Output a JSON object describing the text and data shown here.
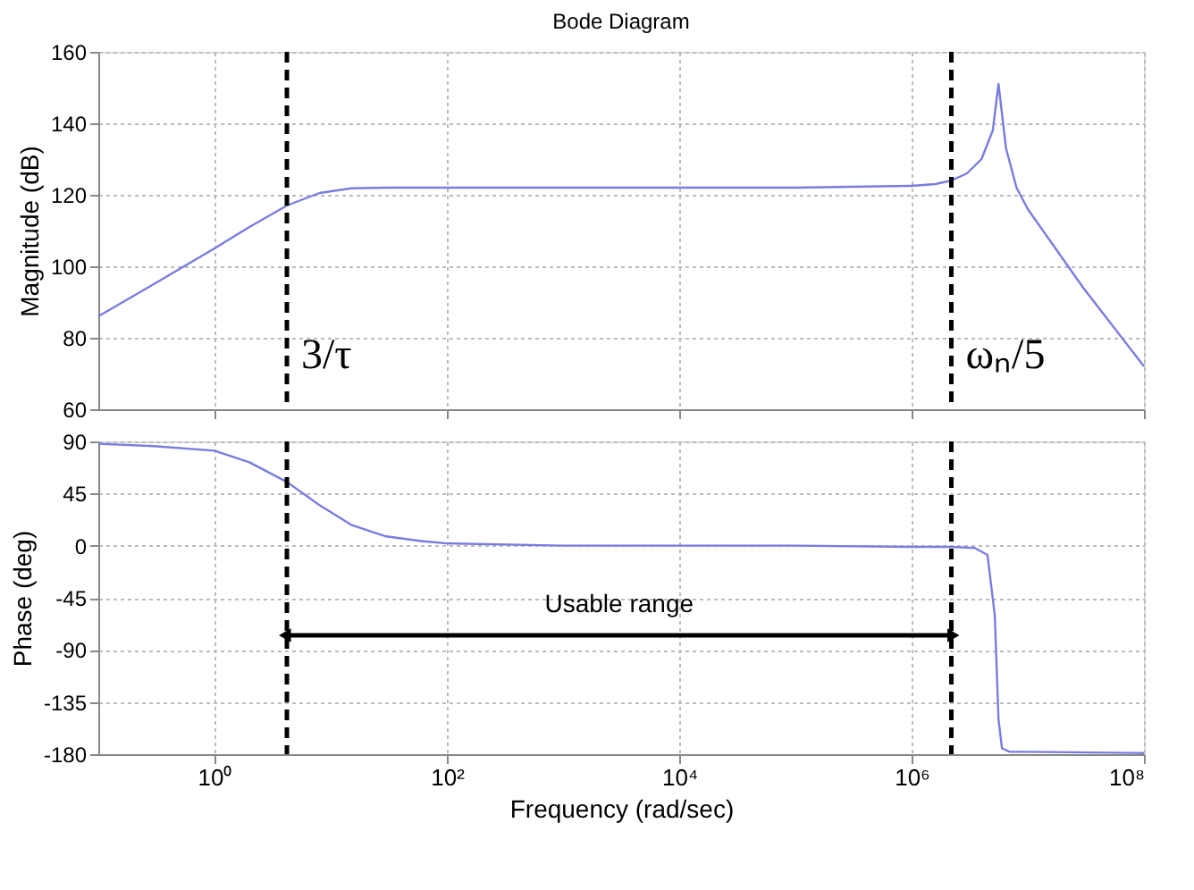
{
  "chart_data": [
    {
      "type": "line",
      "title": "Bode Diagram",
      "ylabel": "Magnitude (dB)",
      "log": "x",
      "grid": true,
      "tick_labels": "y",
      "line_style": "solid",
      "marker": "none",
      "xlim": [
        0.1,
        100000000
      ],
      "xticks": [
        {
          "value": 1,
          "label": null
        },
        {
          "value": 100,
          "label": null
        },
        {
          "value": 10000,
          "label": null
        },
        {
          "value": 1000000,
          "label": null
        },
        {
          "value": 100000000,
          "label": null
        }
      ],
      "ylim": [
        60,
        160
      ],
      "yticks": [
        60,
        80,
        100,
        120,
        140,
        160
      ],
      "x": [
        0.1,
        0.3,
        1,
        2,
        4.2,
        8,
        15,
        30,
        100,
        1000,
        100000,
        1000000,
        1600000,
        2200000,
        3000000,
        4000000,
        5000000,
        5600000,
        6500000,
        8000000,
        10000000,
        30000000,
        100000000
      ],
      "series": [
        {
          "color": "#7b7bdf",
          "values": [
            86,
            95,
            105,
            111,
            117,
            120.5,
            121.8,
            122,
            122,
            122,
            122,
            122.5,
            123,
            124,
            126,
            130,
            138,
            151,
            133,
            122,
            116,
            94,
            72
          ]
        }
      ],
      "ref_lines": [
        {
          "axis": "x",
          "value": 4.2,
          "label": "3/τ",
          "color": "#000000",
          "line_style": "dashed"
        },
        {
          "axis": "x",
          "value": 2200000,
          "label": "ωₙ/5",
          "color": "#000000",
          "line_style": "dashed"
        }
      ]
    },
    {
      "type": "line",
      "xlabel": "Frequency (rad/sec)",
      "ylabel": "Phase (deg)",
      "log": "x",
      "grid": true,
      "line_style": "solid",
      "marker": "none",
      "xlim": [
        0.1,
        100000000
      ],
      "xticks": [
        {
          "value": 1,
          "label": "10⁰"
        },
        {
          "value": 100,
          "label": "10²"
        },
        {
          "value": 10000,
          "label": "10⁴"
        },
        {
          "value": 1000000,
          "label": "10⁶"
        },
        {
          "value": 100000000,
          "label": "10⁸"
        }
      ],
      "ylim": [
        -180,
        90
      ],
      "yticks": [
        -180,
        -135,
        -90,
        -45,
        0,
        45,
        90
      ],
      "x": [
        0.1,
        0.3,
        1,
        2,
        4.2,
        8,
        15,
        30,
        60,
        100,
        1000,
        100000,
        1000000,
        2200000,
        3500000,
        4500000,
        5200000,
        5600000,
        6000000,
        7000000,
        10000000,
        100000000
      ],
      "series": [
        {
          "color": "#7b7bdf",
          "values": [
            88,
            86,
            82,
            72,
            55,
            35,
            18,
            8,
            4,
            2,
            0,
            0,
            -1,
            -1,
            -2,
            -8,
            -60,
            -150,
            -175,
            -178,
            -178,
            -179
          ]
        }
      ],
      "ref_lines": [
        {
          "axis": "x",
          "value": 4.2,
          "color": "#000000",
          "line_style": "dashed"
        },
        {
          "axis": "x",
          "value": 2200000,
          "color": "#000000",
          "line_style": "dashed"
        }
      ],
      "annotations": [
        "Usable range"
      ]
    }
  ]
}
